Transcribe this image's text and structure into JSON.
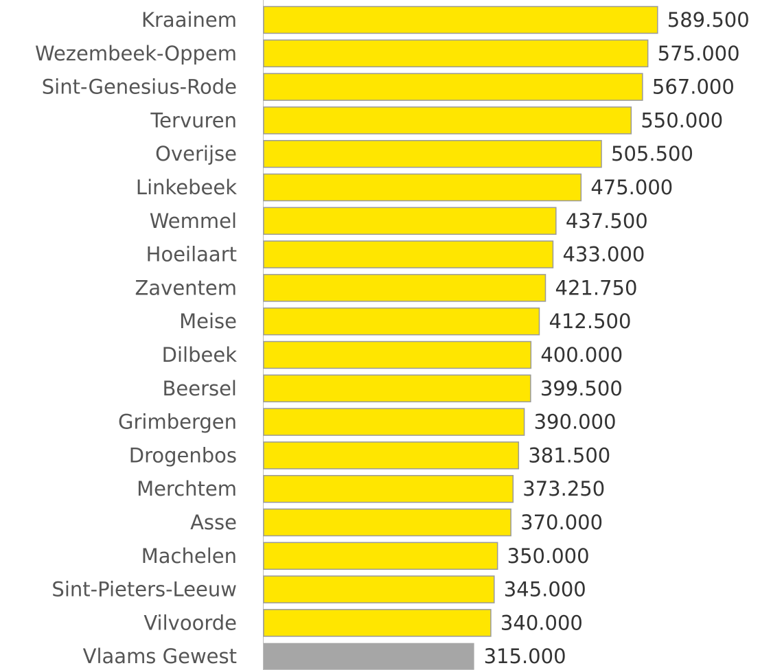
{
  "chart_data": {
    "type": "barh",
    "categories": [
      "Kraainem",
      "Wezembeek-Oppem",
      "Sint-Genesius-Rode",
      "Tervuren",
      "Overijse",
      "Linkebeek",
      "Wemmel",
      "Hoeilaart",
      "Zaventem",
      "Meise",
      "Dilbeek",
      "Beersel",
      "Grimbergen",
      "Drogenbos",
      "Merchtem",
      "Asse",
      "Machelen",
      "Sint-Pieters-Leeuw",
      "Vilvoorde",
      "Vlaams Gewest"
    ],
    "values": [
      589500,
      575000,
      567000,
      550000,
      505500,
      475000,
      437500,
      433000,
      421750,
      412500,
      400000,
      399500,
      390000,
      381500,
      373250,
      370000,
      350000,
      345000,
      340000,
      315000
    ],
    "value_labels": [
      "589.500",
      "575.000",
      "567.000",
      "550.000",
      "505.500",
      "475.000",
      "437.500",
      "433.000",
      "421.750",
      "412.500",
      "400.000",
      "399.500",
      "390.000",
      "381.500",
      "373.250",
      "370.000",
      "350.000",
      "345.000",
      "340.000",
      "315.000"
    ],
    "colors": [
      "#ffe600",
      "#ffe600",
      "#ffe600",
      "#ffe600",
      "#ffe600",
      "#ffe600",
      "#ffe600",
      "#ffe600",
      "#ffe600",
      "#ffe600",
      "#ffe600",
      "#ffe600",
      "#ffe600",
      "#ffe600",
      "#ffe600",
      "#ffe600",
      "#ffe600",
      "#ffe600",
      "#ffe600",
      "#a6a6a6"
    ],
    "xlim": [
      0,
      600000
    ]
  }
}
